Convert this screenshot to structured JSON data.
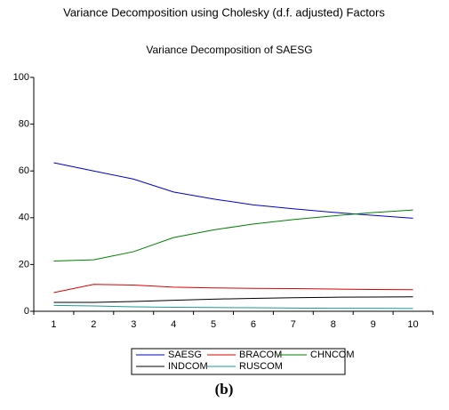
{
  "chart_data": {
    "type": "line",
    "title": "Variance Decomposition using Cholesky (d.f. adjusted) Factors",
    "subtitle": "Variance Decomposition of SAESG",
    "caption": "(b)",
    "categories": [
      "1",
      "2",
      "3",
      "4",
      "5",
      "6",
      "7",
      "8",
      "9",
      "10"
    ],
    "series": [
      {
        "name": "SAESG",
        "color": "#0000cc",
        "values": [
          63.5,
          60,
          56.5,
          51,
          48,
          45.5,
          43.8,
          42.3,
          41,
          39.8
        ]
      },
      {
        "name": "BRACOM",
        "color": "#dd0000",
        "values": [
          8,
          11.5,
          11.2,
          10.3,
          10,
          9.8,
          9.7,
          9.5,
          9.3,
          9.2
        ]
      },
      {
        "name": "CHNCOM",
        "color": "#008000",
        "values": [
          21.5,
          22,
          25.5,
          31.5,
          34.8,
          37.3,
          39.2,
          40.8,
          42.2,
          43.3
        ]
      },
      {
        "name": "INDCOM",
        "color": "#000000",
        "values": [
          3.8,
          3.8,
          4.2,
          4.7,
          5.2,
          5.5,
          5.8,
          6.0,
          6.1,
          6.2
        ]
      },
      {
        "name": "RUSCOM",
        "color": "#1a9a9a",
        "values": [
          2.5,
          2.3,
          1.9,
          1.7,
          1.6,
          1.5,
          1.4,
          1.3,
          1.3,
          1.2
        ]
      }
    ],
    "ylim": [
      0,
      100
    ],
    "yticks": [
      0,
      20,
      40,
      60,
      80,
      100
    ],
    "legend": "bottom"
  }
}
